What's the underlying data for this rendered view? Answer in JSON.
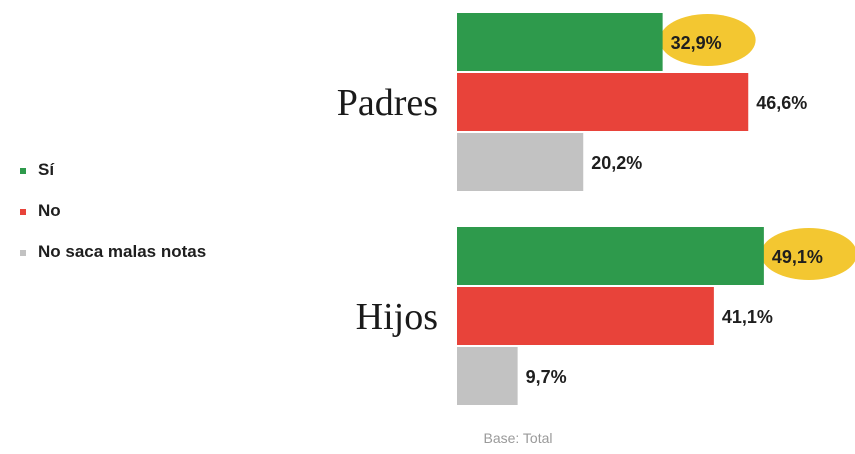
{
  "chart_data": {
    "type": "bar",
    "orientation": "horizontal",
    "categories": [
      "Padres",
      "Hijos"
    ],
    "series": [
      {
        "name": "Sí",
        "color": "#2e9a4c",
        "values": [
          32.9,
          49.1
        ],
        "labels": [
          "32,9%",
          "49,1%"
        ]
      },
      {
        "name": "No",
        "color": "#e8433a",
        "values": [
          46.6,
          41.1
        ],
        "labels": [
          "46,6%",
          "41,1%"
        ]
      },
      {
        "name": "No saca malas notas",
        "color": "#c2c2c2",
        "values": [
          20.2,
          9.7
        ],
        "labels": [
          "20,2%",
          "9,7%"
        ]
      }
    ],
    "highlight_color": "#f3c731",
    "highlighted": [
      {
        "series": 0,
        "category": 0
      },
      {
        "series": 0,
        "category": 1
      }
    ],
    "legend_position": "left",
    "grid": false,
    "xlim": [
      0,
      50
    ],
    "footnote": "Base: Total"
  }
}
